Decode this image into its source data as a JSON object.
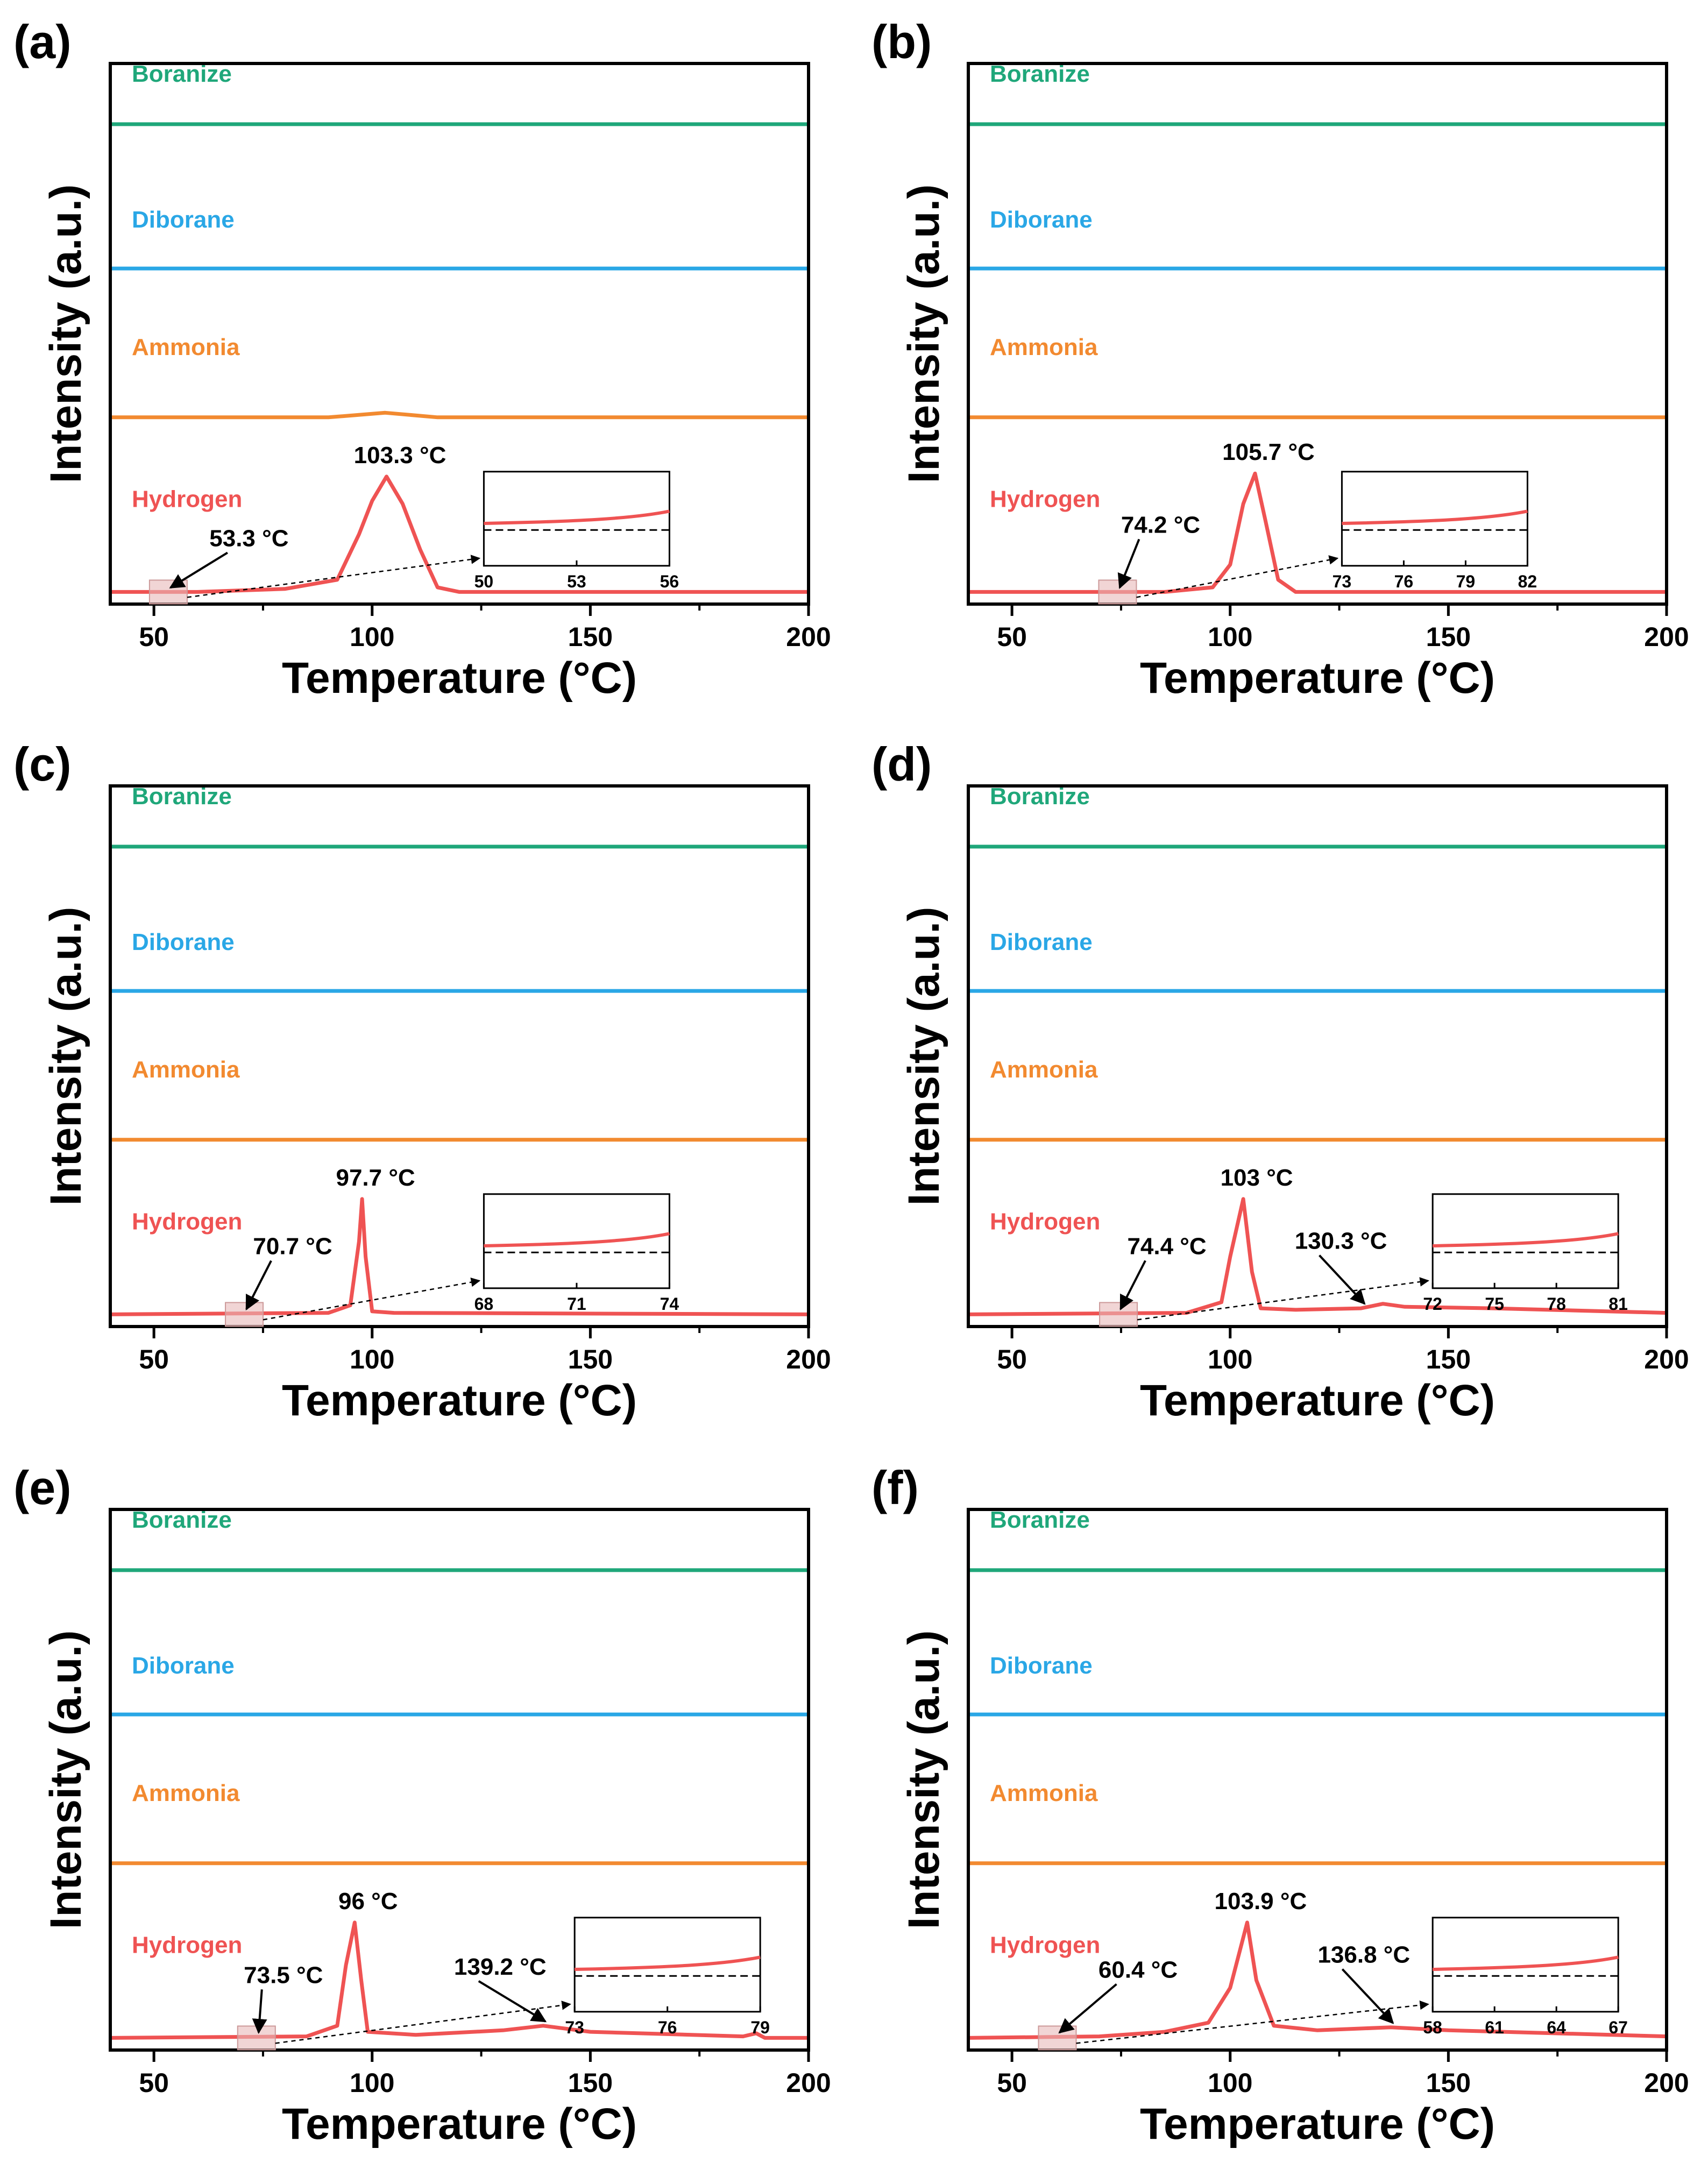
{
  "colors": {
    "hydrogen": "#ef5353",
    "ammonia": "#f28a30",
    "diborane": "#2aa7e6",
    "boranize": "#1fa77a",
    "axis": "#000000",
    "zoom_box": "#e8b9b9"
  },
  "species_labels": [
    "Boranize",
    "Diborane",
    "Ammonia",
    "Hydrogen"
  ],
  "chart_data": [
    {
      "type": "line",
      "panel_label": "(a)",
      "xlabel": "Temperature (°C)",
      "ylabel": "Intensity (a.u.)",
      "xlim": [
        40,
        200
      ],
      "x_ticks": [
        50,
        100,
        150,
        200
      ],
      "grid": false,
      "series": [
        {
          "name": "Boranize",
          "points": [
            [
              40,
              3.1
            ],
            [
              200,
              3.1
            ]
          ]
        },
        {
          "name": "Diborane",
          "points": [
            [
              40,
              2.15
            ],
            [
              200,
              2.15
            ]
          ]
        },
        {
          "name": "Ammonia",
          "points": [
            [
              40,
              1.17
            ],
            [
              90,
              1.17
            ],
            [
              103,
              1.2
            ],
            [
              115,
              1.17
            ],
            [
              200,
              1.17
            ]
          ]
        },
        {
          "name": "Hydrogen",
          "points": [
            [
              40,
              0.02
            ],
            [
              60,
              0.02
            ],
            [
              80,
              0.04
            ],
            [
              92,
              0.1
            ],
            [
              97,
              0.4
            ],
            [
              100,
              0.62
            ],
            [
              103.3,
              0.78
            ],
            [
              107,
              0.6
            ],
            [
              111,
              0.3
            ],
            [
              115,
              0.05
            ],
            [
              120,
              0.02
            ],
            [
              200,
              0.02
            ]
          ]
        }
      ],
      "annotations": [
        {
          "text": "103.3 °C",
          "x": 103.3
        },
        {
          "text": "53.3 °C",
          "x": 53.3
        }
      ],
      "inset": {
        "x_ticks": [
          "50",
          "53",
          "56"
        ]
      }
    },
    {
      "type": "line",
      "panel_label": "(b)",
      "xlabel": "Temperature (°C)",
      "ylabel": "Intensity (a.u.)",
      "xlim": [
        40,
        200
      ],
      "x_ticks": [
        50,
        100,
        150,
        200
      ],
      "grid": false,
      "series": [
        {
          "name": "Boranize",
          "points": [
            [
              40,
              3.1
            ],
            [
              200,
              3.1
            ]
          ]
        },
        {
          "name": "Diborane",
          "points": [
            [
              40,
              2.15
            ],
            [
              200,
              2.15
            ]
          ]
        },
        {
          "name": "Ammonia",
          "points": [
            [
              40,
              1.17
            ],
            [
              200,
              1.17
            ]
          ]
        },
        {
          "name": "Hydrogen",
          "points": [
            [
              40,
              0.02
            ],
            [
              85,
              0.02
            ],
            [
              96,
              0.05
            ],
            [
              100,
              0.2
            ],
            [
              103,
              0.6
            ],
            [
              105.7,
              0.8
            ],
            [
              108,
              0.5
            ],
            [
              111,
              0.1
            ],
            [
              115,
              0.02
            ],
            [
              200,
              0.02
            ]
          ]
        }
      ],
      "annotations": [
        {
          "text": "105.7 °C",
          "x": 105.7
        },
        {
          "text": "74.2 °C",
          "x": 74.2
        }
      ],
      "inset": {
        "x_ticks": [
          "73",
          "76",
          "79",
          "82"
        ]
      }
    },
    {
      "type": "line",
      "panel_label": "(c)",
      "xlabel": "Temperature (°C)",
      "ylabel": "Intensity (a.u.)",
      "xlim": [
        40,
        200
      ],
      "x_ticks": [
        50,
        100,
        150,
        200
      ],
      "grid": false,
      "series": [
        {
          "name": "Boranize",
          "points": [
            [
              40,
              3.1
            ],
            [
              200,
              3.1
            ]
          ]
        },
        {
          "name": "Diborane",
          "points": [
            [
              40,
              2.15
            ],
            [
              200,
              2.15
            ]
          ]
        },
        {
          "name": "Ammonia",
          "points": [
            [
              40,
              1.17
            ],
            [
              200,
              1.17
            ]
          ]
        },
        {
          "name": "Hydrogen",
          "points": [
            [
              40,
              0.02
            ],
            [
              90,
              0.03
            ],
            [
              95,
              0.08
            ],
            [
              97,
              0.5
            ],
            [
              97.7,
              0.78
            ],
            [
              98.5,
              0.4
            ],
            [
              100,
              0.04
            ],
            [
              105,
              0.03
            ],
            [
              200,
              0.02
            ]
          ]
        }
      ],
      "annotations": [
        {
          "text": "97.7 °C",
          "x": 97.7
        },
        {
          "text": "70.7 °C",
          "x": 70.7
        }
      ],
      "inset": {
        "x_ticks": [
          "68",
          "71",
          "74"
        ]
      }
    },
    {
      "type": "line",
      "panel_label": "(d)",
      "xlabel": "Temperature (°C)",
      "ylabel": "Intensity (a.u.)",
      "xlim": [
        40,
        200
      ],
      "x_ticks": [
        50,
        100,
        150,
        200
      ],
      "grid": false,
      "series": [
        {
          "name": "Boranize",
          "points": [
            [
              40,
              3.1
            ],
            [
              200,
              3.1
            ]
          ]
        },
        {
          "name": "Diborane",
          "points": [
            [
              40,
              2.15
            ],
            [
              200,
              2.15
            ]
          ]
        },
        {
          "name": "Ammonia",
          "points": [
            [
              40,
              1.17
            ],
            [
              200,
              1.17
            ]
          ]
        },
        {
          "name": "Hydrogen",
          "points": [
            [
              40,
              0.02
            ],
            [
              90,
              0.03
            ],
            [
              98,
              0.1
            ],
            [
              100,
              0.4
            ],
            [
              103,
              0.78
            ],
            [
              105,
              0.3
            ],
            [
              107,
              0.06
            ],
            [
              115,
              0.05
            ],
            [
              130,
              0.06
            ],
            [
              135,
              0.09
            ],
            [
              140,
              0.07
            ],
            [
              160,
              0.06
            ],
            [
              200,
              0.03
            ]
          ]
        }
      ],
      "annotations": [
        {
          "text": "103 °C",
          "x": 103
        },
        {
          "text": "74.4 °C",
          "x": 74.4
        },
        {
          "text": "130.3 °C",
          "x": 130.3
        }
      ],
      "inset": {
        "x_ticks": [
          "72",
          "75",
          "78",
          "81"
        ]
      }
    },
    {
      "type": "line",
      "panel_label": "(e)",
      "xlabel": "Temperature (°C)",
      "ylabel": "Intensity (a.u.)",
      "xlim": [
        40,
        200
      ],
      "x_ticks": [
        50,
        100,
        150,
        200
      ],
      "grid": false,
      "series": [
        {
          "name": "Boranize",
          "points": [
            [
              40,
              3.1
            ],
            [
              200,
              3.1
            ]
          ]
        },
        {
          "name": "Diborane",
          "points": [
            [
              40,
              2.15
            ],
            [
              200,
              2.15
            ]
          ]
        },
        {
          "name": "Ammonia",
          "points": [
            [
              40,
              1.17
            ],
            [
              200,
              1.17
            ]
          ]
        },
        {
          "name": "Hydrogen",
          "points": [
            [
              40,
              0.02
            ],
            [
              85,
              0.03
            ],
            [
              92,
              0.1
            ],
            [
              94,
              0.5
            ],
            [
              96,
              0.78
            ],
            [
              97.5,
              0.4
            ],
            [
              99,
              0.06
            ],
            [
              110,
              0.04
            ],
            [
              130,
              0.07
            ],
            [
              139.2,
              0.1
            ],
            [
              150,
              0.06
            ],
            [
              185,
              0.03
            ],
            [
              188,
              0.05
            ],
            [
              190,
              0.02
            ],
            [
              200,
              0.02
            ]
          ]
        }
      ],
      "annotations": [
        {
          "text": "96 °C",
          "x": 96
        },
        {
          "text": "73.5 °C",
          "x": 73.5
        },
        {
          "text": "139.2 °C",
          "x": 139.2
        }
      ],
      "inset": {
        "x_ticks": [
          "73",
          "76",
          "79"
        ]
      }
    },
    {
      "type": "line",
      "panel_label": "(f)",
      "xlabel": "Temperature (°C)",
      "ylabel": "Intensity (a.u.)",
      "xlim": [
        40,
        200
      ],
      "x_ticks": [
        50,
        100,
        150,
        200
      ],
      "grid": false,
      "series": [
        {
          "name": "Boranize",
          "points": [
            [
              40,
              3.1
            ],
            [
              200,
              3.1
            ]
          ]
        },
        {
          "name": "Diborane",
          "points": [
            [
              40,
              2.15
            ],
            [
              200,
              2.15
            ]
          ]
        },
        {
          "name": "Ammonia",
          "points": [
            [
              40,
              1.17
            ],
            [
              200,
              1.17
            ]
          ]
        },
        {
          "name": "Hydrogen",
          "points": [
            [
              40,
              0.02
            ],
            [
              70,
              0.03
            ],
            [
              85,
              0.06
            ],
            [
              95,
              0.12
            ],
            [
              100,
              0.35
            ],
            [
              103.9,
              0.78
            ],
            [
              106,
              0.4
            ],
            [
              110,
              0.1
            ],
            [
              120,
              0.07
            ],
            [
              136.8,
              0.09
            ],
            [
              150,
              0.07
            ],
            [
              200,
              0.03
            ]
          ]
        }
      ],
      "annotations": [
        {
          "text": "103.9 °C",
          "x": 103.9
        },
        {
          "text": "60.4 °C",
          "x": 60.4
        },
        {
          "text": "136.8 °C",
          "x": 136.8
        }
      ],
      "inset": {
        "x_ticks": [
          "58",
          "61",
          "64",
          "67"
        ]
      }
    }
  ]
}
